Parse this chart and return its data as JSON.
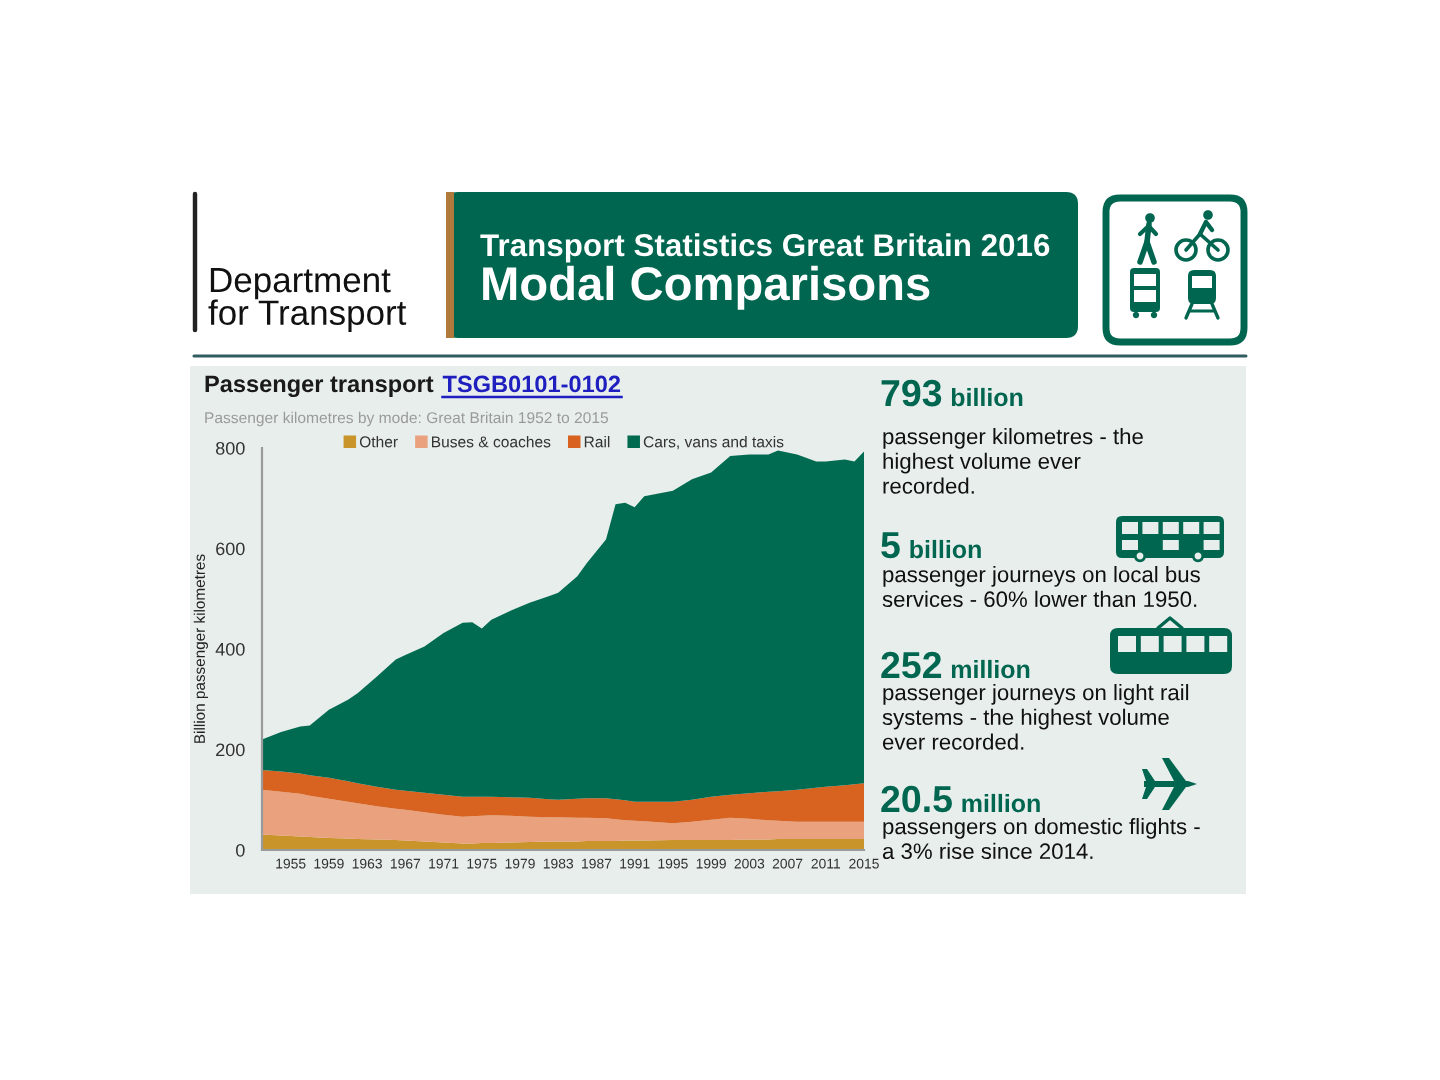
{
  "chart_data": [
    {
      "type": "other",
      "title": "Transport Statistics Great Britain 2016",
      "subtitle": "Modal Comparisons",
      "annotations": [
        "Department\nfor Transport"
      ]
    },
    {
      "type": "area",
      "stacked": true,
      "title": "Passenger transport",
      "annotations": [
        "TSGB0101-0102"
      ],
      "subtitle": "Passenger kilometres by mode: Great Britain 1952 to 2015",
      "ylabel": "Billion passenger kilometres",
      "x": [
        1952,
        1954,
        1956,
        1957,
        1959,
        1961,
        1962,
        1964,
        1966,
        1967,
        1969,
        1971,
        1973,
        1974,
        1975,
        1976,
        1978,
        1980,
        1982,
        1983,
        1985,
        1986,
        1988,
        1989,
        1990,
        1991,
        1992,
        1995,
        1997,
        1999,
        2001,
        2003,
        2005,
        2006,
        2008,
        2010,
        2011,
        2013,
        2014,
        2015
      ],
      "series": [
        {
          "name": "Other",
          "color": "#c9952b",
          "values": [
            31,
            29,
            27,
            26,
            24,
            23,
            22,
            21,
            20,
            19,
            17,
            15,
            13,
            13,
            14,
            14,
            15,
            16,
            17,
            17,
            17,
            18,
            18,
            18,
            19,
            19,
            19,
            20,
            20,
            20,
            20,
            21,
            21,
            22,
            22,
            22,
            22,
            22,
            22,
            22
          ]
        },
        {
          "name": "Buses & coaches",
          "color": "#eaa17e",
          "values": [
            89,
            87,
            85,
            82,
            78,
            73,
            71,
            66,
            62,
            61,
            58,
            55,
            53,
            54,
            54,
            55,
            53,
            50,
            48,
            48,
            47,
            46,
            45,
            43,
            40,
            39,
            38,
            33,
            36,
            40,
            44,
            41,
            38,
            36,
            34,
            34,
            34,
            34,
            34,
            34
          ]
        },
        {
          "name": "Rail",
          "color": "#d8621f",
          "values": [
            39,
            40,
            40,
            41,
            42,
            41,
            40,
            39,
            38,
            38,
            39,
            40,
            40,
            39,
            38,
            37,
            37,
            38,
            36,
            35,
            38,
            39,
            40,
            40,
            40,
            38,
            39,
            43,
            44,
            46,
            46,
            51,
            57,
            59,
            64,
            68,
            70,
            73,
            75,
            77
          ]
        },
        {
          "name": "Cars, vans and taxis",
          "color": "#006b51",
          "values": [
            61,
            79,
            94,
            99,
            135,
            162,
            179,
            219,
            259,
            270,
            291,
            322,
            346,
            347,
            335,
            352,
            371,
            388,
            404,
            412,
            443,
            468,
            515,
            587,
            592,
            586,
            608,
            619,
            638,
            645,
            674,
            674,
            671,
            678,
            667,
            649,
            647,
            648,
            642,
            660
          ]
        }
      ],
      "xlim": [
        1952,
        2015
      ],
      "xticks": [
        1955,
        1959,
        1963,
        1967,
        1971,
        1975,
        1979,
        1983,
        1987,
        1991,
        1995,
        1999,
        2003,
        2007,
        2011,
        2015
      ],
      "ylim": [
        0,
        800
      ],
      "yticks": [
        0,
        200,
        400,
        600,
        800
      ],
      "legend": "top"
    },
    {
      "type": "other",
      "annotations": [
        "793 billion",
        "passenger kilometres - the\nhighest volume ever\nrecorded.",
        "5 billion",
        "passenger journeys on local bus\nservices - 60% lower than 1950.",
        "252 million",
        "passenger journeys on light rail\nsystems - the highest volume\never recorded.",
        "20.5 million",
        "passengers on domestic flights -\na 3% rise since 2014."
      ]
    }
  ]
}
